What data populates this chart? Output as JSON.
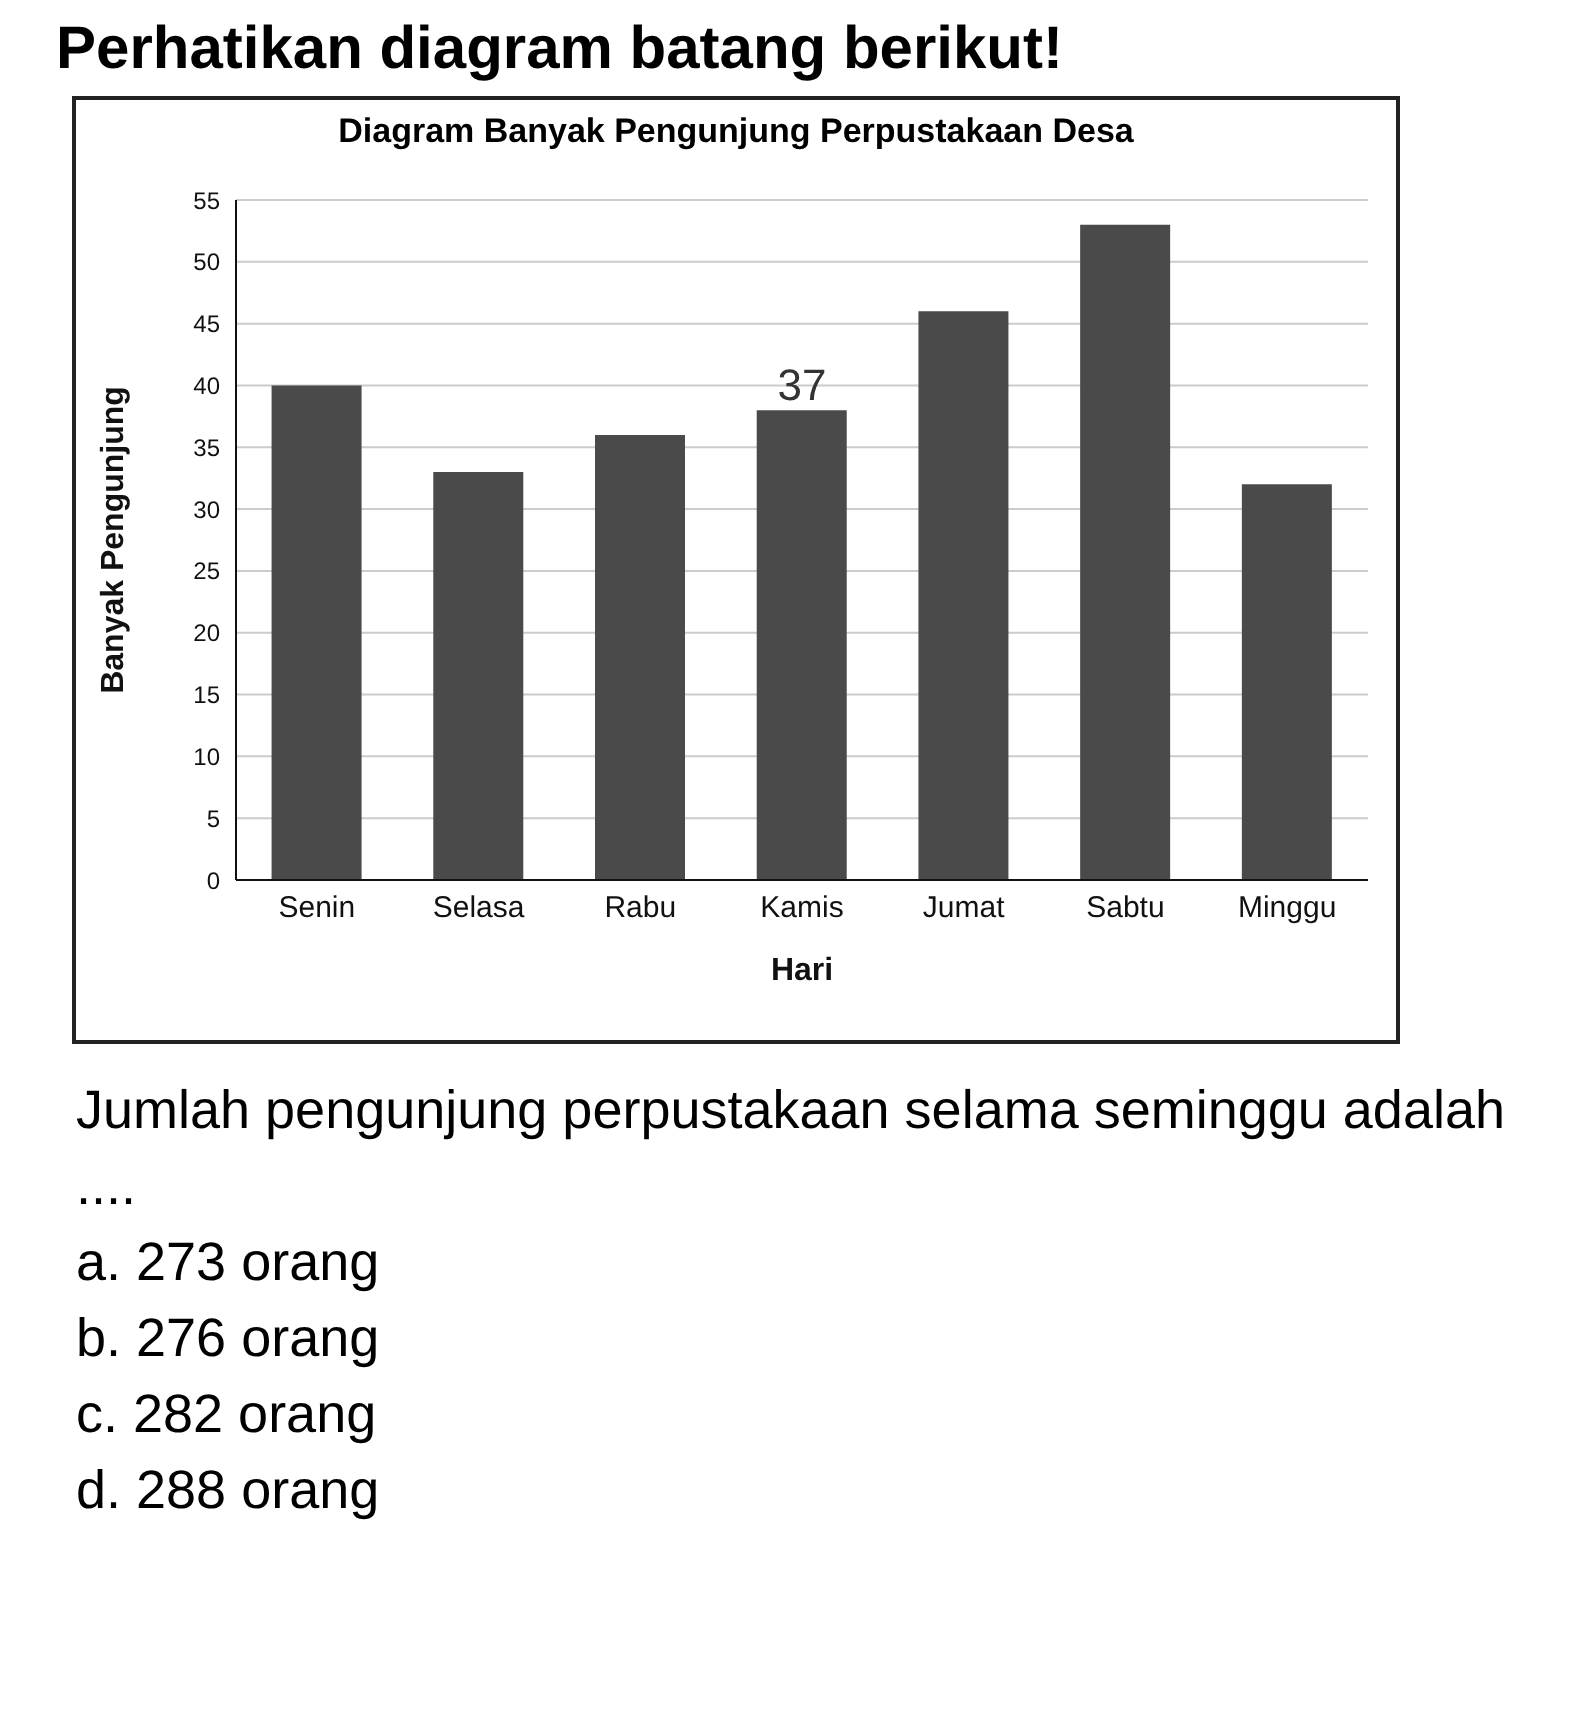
{
  "chart_data": {
    "type": "bar",
    "title": "Diagram Banyak Pengunjung Perpustakaan Desa",
    "xlabel": "Hari",
    "ylabel": "Banyak Pengunjung",
    "categories": [
      "Senin",
      "Selasa",
      "Rabu",
      "Kamis",
      "Jumat",
      "Sabtu",
      "Minggu"
    ],
    "values": [
      40,
      33,
      36,
      38,
      46,
      53,
      32
    ],
    "color": "#4a4a4a",
    "ylim": [
      0,
      55
    ],
    "yticks": [
      0,
      5,
      10,
      15,
      20,
      25,
      30,
      35,
      40,
      45,
      50,
      55
    ],
    "grid": "y",
    "annotations": [
      "Perhatikan diagram batang berikut!",
      {
        "text": "37",
        "x": "Kamis",
        "y": 38
      },
      "Jumlah pengunjung perpustakaan selama seminggu adalah ....",
      "a.  273 orang",
      "b.  276 orang",
      "c.  282 orang",
      "d.  288 orang"
    ]
  }
}
